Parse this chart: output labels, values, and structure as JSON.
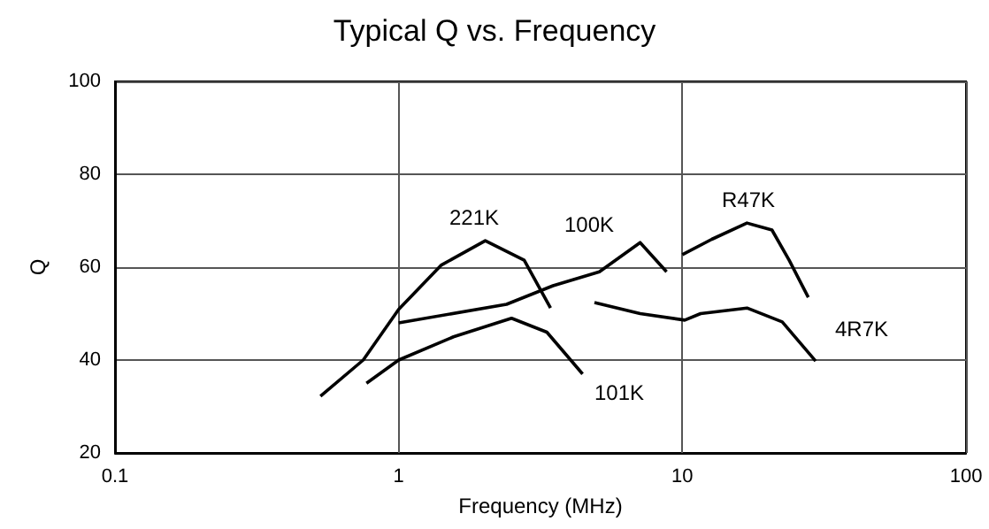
{
  "chart_data": {
    "type": "line",
    "title": "Typical Q vs. Frequency",
    "xlabel": "Frequency (MHz)",
    "ylabel": "Q",
    "log": "x",
    "xlim": [
      0.1,
      100
    ],
    "xticks": [
      0.1,
      1,
      10,
      100
    ],
    "ylim": [
      20,
      100
    ],
    "yticks": [
      20,
      40,
      60,
      80,
      100
    ],
    "grid": true,
    "marker": "none",
    "line_style": "solid",
    "series": [
      {
        "color": "#000000",
        "x": [
          0.53,
          0.75,
          1,
          1.41,
          2.02,
          2.77,
          3.43
        ],
        "values": [
          32.2,
          40,
          50.9,
          60.4,
          65.7,
          61.5,
          51.2
        ]
      },
      {
        "color": "#000000",
        "x": [
          0.77,
          1,
          1.56,
          2.5,
          3.33,
          4.45
        ],
        "values": [
          35,
          40,
          45,
          49,
          46,
          37
        ]
      },
      {
        "color": "#000000",
        "x": [
          1,
          2.4,
          3.5,
          5.1,
          7.1,
          8.8
        ],
        "values": [
          48,
          52,
          56,
          59,
          65.3,
          59
        ]
      },
      {
        "color": "#000000",
        "x": [
          4.9,
          7.1,
          10.2,
          11.6,
          16.9,
          22.5,
          29.5
        ],
        "values": [
          52.4,
          50,
          48.6,
          50,
          51.2,
          48.2,
          39.8
        ]
      },
      {
        "color": "#000000",
        "x": [
          10,
          12.7,
          16.9,
          20.7,
          23.8,
          27.8
        ],
        "values": [
          62.7,
          66,
          69.5,
          68,
          61.5,
          53.5
        ]
      }
    ],
    "annotations": [
      "221K",
      "101K",
      "100K",
      "4R7K",
      "R47K"
    ]
  }
}
